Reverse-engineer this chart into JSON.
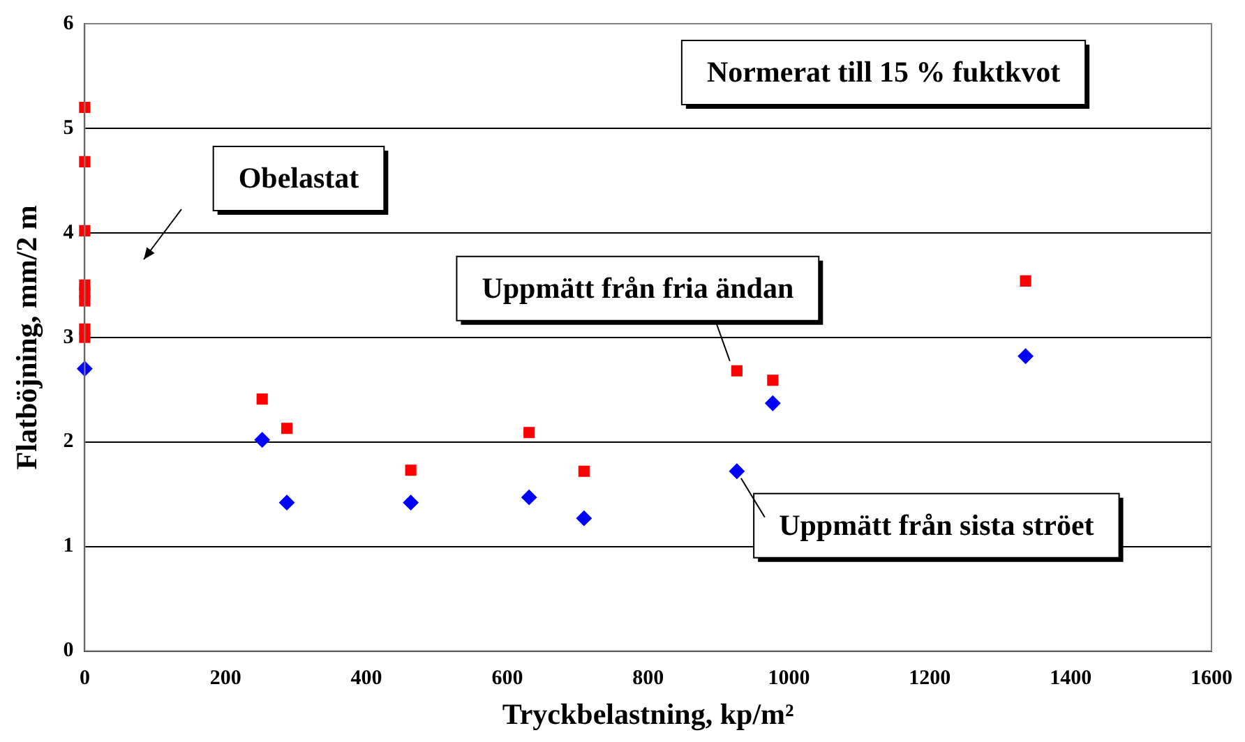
{
  "chart_data": {
    "type": "scatter",
    "xlabel": "Tryckbelastning, kp/m²",
    "ylabel": "Flatböjning, mm/2 m",
    "xlim": [
      0,
      1600
    ],
    "xticks": [
      0,
      200,
      400,
      600,
      800,
      1000,
      1200,
      1400,
      1600
    ],
    "ylim": [
      0,
      6
    ],
    "yticks": [
      0,
      1,
      2,
      3,
      4,
      5,
      6
    ],
    "grid": "y",
    "legend": false,
    "series": [
      {
        "color": "#ff0000",
        "marker": "square",
        "x": [
          0,
          0,
          0,
          0,
          0,
          0,
          0,
          0,
          252,
          287,
          463,
          631,
          709,
          926,
          977,
          1336
        ],
        "values": [
          5.2,
          4.68,
          4.02,
          3.5,
          3.43,
          3.35,
          3.08,
          3.0,
          2.41,
          2.13,
          1.73,
          2.09,
          1.72,
          2.68,
          2.59,
          3.54
        ]
      },
      {
        "color": "#0000ff",
        "marker": "diamond",
        "x": [
          0,
          252,
          287,
          463,
          631,
          709,
          926,
          977,
          1336
        ],
        "values": [
          2.7,
          2.02,
          1.42,
          1.42,
          1.47,
          1.27,
          1.72,
          2.37,
          2.82
        ]
      }
    ],
    "annotations": [
      "Normerat till 15 % fuktkvot",
      "Obelastat",
      {
        "text": "Uppmätt från fria ändan",
        "x": 926,
        "y": 2.68
      },
      {
        "text": "Uppmätt från sista ströet",
        "x": 926,
        "y": 1.72
      }
    ]
  }
}
